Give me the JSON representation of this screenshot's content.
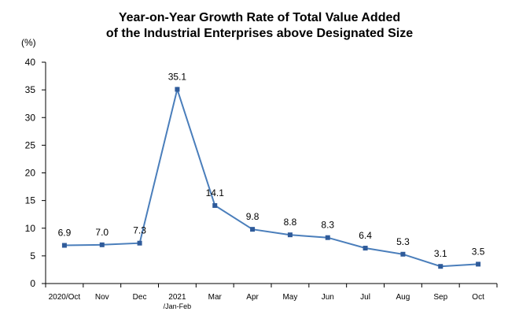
{
  "chart_data": {
    "type": "line",
    "title_lines": [
      "Year-on-Year Growth Rate of Total Value Added",
      "of the Industrial Enterprises above Designated Size"
    ],
    "ylabel": "(%)",
    "xlabel": "",
    "ylim": [
      0,
      40
    ],
    "yticks": [
      0,
      5,
      10,
      15,
      20,
      25,
      30,
      35,
      40
    ],
    "categories": [
      [
        "2020/Oct"
      ],
      [
        "Nov"
      ],
      [
        "Dec"
      ],
      [
        "2021",
        "/Jan-Feb"
      ],
      [
        "Mar"
      ],
      [
        "Apr"
      ],
      [
        "May"
      ],
      [
        "Jun"
      ],
      [
        "Jul"
      ],
      [
        "Aug"
      ],
      [
        "Sep"
      ],
      [
        "Oct"
      ]
    ],
    "series": [
      {
        "values": [
          6.9,
          7.0,
          7.3,
          35.1,
          14.1,
          9.8,
          8.8,
          8.3,
          6.4,
          5.3,
          3.1,
          3.5
        ],
        "labels": [
          "6.9",
          "7.0",
          "7.3",
          "35.1",
          "14.1",
          "9.8",
          "8.8",
          "8.3",
          "6.4",
          "5.3",
          "3.1",
          "3.5"
        ]
      }
    ],
    "grid": false,
    "legend": "none",
    "line_color": "#4a7ebb",
    "marker_color": "#2f5b9a"
  }
}
